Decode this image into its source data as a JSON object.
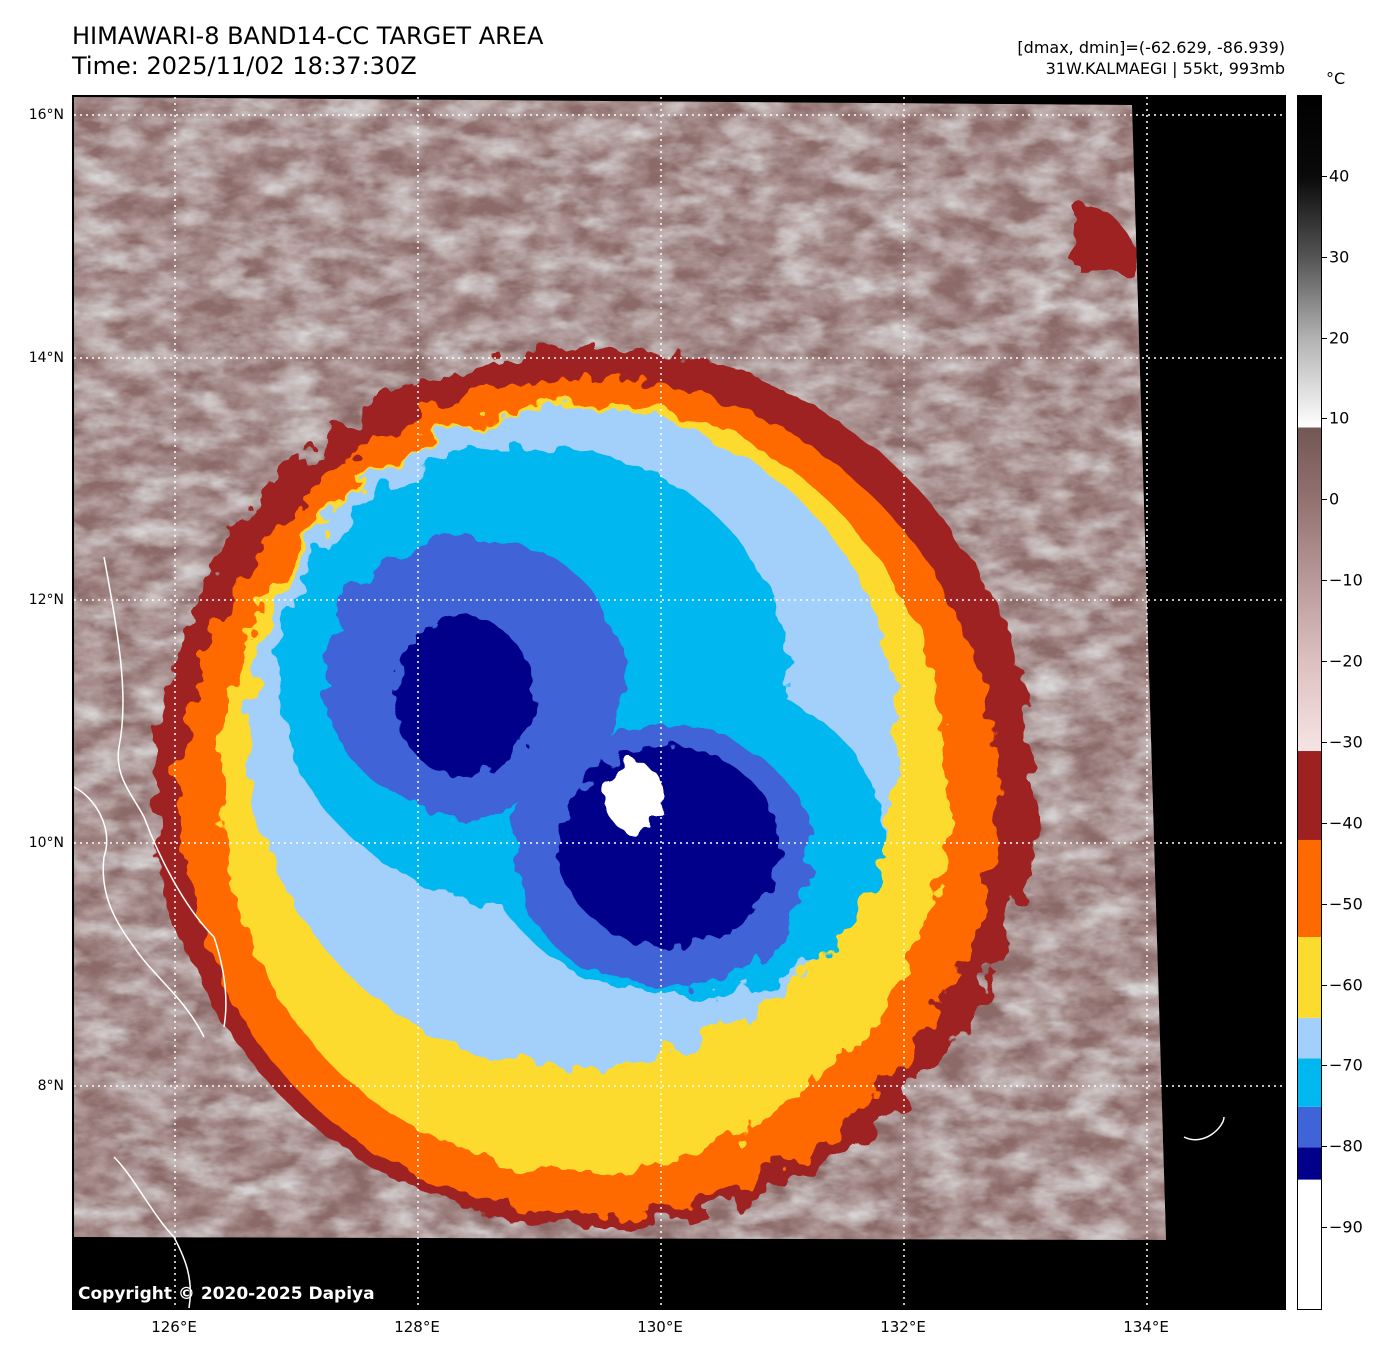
{
  "header": {
    "title_line1": "HIMAWARI-8 BAND14-CC TARGET AREA",
    "title_line2": "Time: 2025/11/02 18:37:30Z",
    "meta_line1": "[dmax, dmin]=(-62.629, -86.939)",
    "meta_line2": "31W.KALMAEGI | 55kt, 993mb"
  },
  "map": {
    "lat_labels": [
      "16°N",
      "14°N",
      "12°N",
      "10°N",
      "8°N"
    ],
    "lon_labels": [
      "126°E",
      "128°E",
      "130°E",
      "132°E",
      "134°E"
    ],
    "copyright": "Copyright © 2020-2025 Dapiya",
    "palette": {
      "no_data": "#000000",
      "cloud_gray": "#9c9c9c",
      "warm_brown": "#8b6a68",
      "pink": "#e6c8c8",
      "dark_red": "#9e2121",
      "orange": "#ff6a00",
      "yellow": "#fcdb2f",
      "light_blue": "#a3cffb",
      "cyan": "#00b7f0",
      "royal_blue": "#3f64d8",
      "navy": "#00008b",
      "white": "#ffffff"
    }
  },
  "colorbar": {
    "unit": "°C",
    "tick_labels": [
      "40",
      "30",
      "20",
      "10",
      "0",
      "−10",
      "−20",
      "−30",
      "−40",
      "−50",
      "−60",
      "−70",
      "−80",
      "−90"
    ],
    "segments": [
      {
        "from": -100,
        "to": -84,
        "color": "#ffffff"
      },
      {
        "from": -84,
        "to": -80,
        "color": "#00008b"
      },
      {
        "from": -80,
        "to": -75,
        "color": "#3f64d8"
      },
      {
        "from": -75,
        "to": -69,
        "color": "#00b7f0"
      },
      {
        "from": -69,
        "to": -64,
        "color": "#a3cffb"
      },
      {
        "from": -64,
        "to": -54,
        "color": "#fcdb2f"
      },
      {
        "from": -54,
        "to": -42,
        "color": "#ff6a00"
      },
      {
        "from": -42,
        "to": -31,
        "color": "#9e2121"
      }
    ],
    "gradient_stops": [
      {
        "value": -31,
        "color": "#f6e4e4"
      },
      {
        "value": -20,
        "color": "#ddc0c0"
      },
      {
        "value": -10,
        "color": "#b89a9a"
      },
      {
        "value": 0,
        "color": "#937270"
      },
      {
        "value": 9,
        "color": "#725755"
      },
      {
        "value": 9.01,
        "color": "#ffffff"
      },
      {
        "value": 20,
        "color": "#b2b2b2"
      },
      {
        "value": 30,
        "color": "#555555"
      },
      {
        "value": 40,
        "color": "#0a0a0a"
      },
      {
        "value": 50,
        "color": "#000000"
      }
    ]
  }
}
